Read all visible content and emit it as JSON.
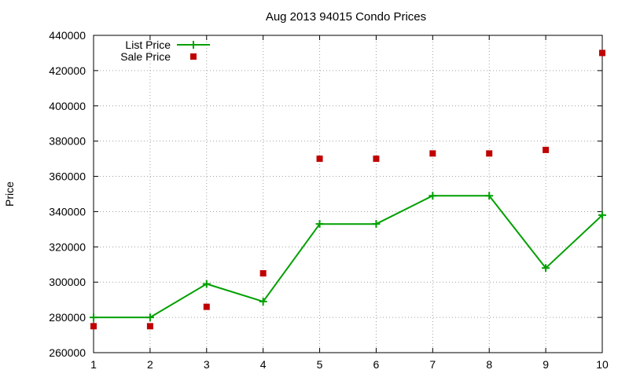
{
  "chart_data": {
    "type": "line",
    "title": "Aug 2013 94015 Condo Prices",
    "xlabel": "",
    "ylabel": "Price",
    "x": [
      1,
      2,
      3,
      4,
      5,
      6,
      7,
      8,
      9,
      10
    ],
    "xlim": [
      1,
      10
    ],
    "ylim": [
      260000,
      440000
    ],
    "xticks": [
      "1",
      "2",
      "3",
      "4",
      "5",
      "6",
      "7",
      "8",
      "9",
      "10"
    ],
    "yticks": [
      "260000",
      "280000",
      "300000",
      "320000",
      "340000",
      "360000",
      "380000",
      "400000",
      "420000",
      "440000"
    ],
    "grid": true,
    "legend_position": "top-left",
    "series": [
      {
        "name": "List Price",
        "style": "lines+points",
        "marker": "plus",
        "color": "#00a000",
        "values": [
          280000,
          280000,
          299000,
          289000,
          333000,
          333000,
          349000,
          349000,
          308000,
          338000
        ]
      },
      {
        "name": "Sale Price",
        "style": "points",
        "marker": "square",
        "color": "#c00000",
        "values": [
          275000,
          275000,
          286000,
          305000,
          370000,
          370000,
          373000,
          373000,
          375000,
          430000
        ]
      }
    ]
  }
}
